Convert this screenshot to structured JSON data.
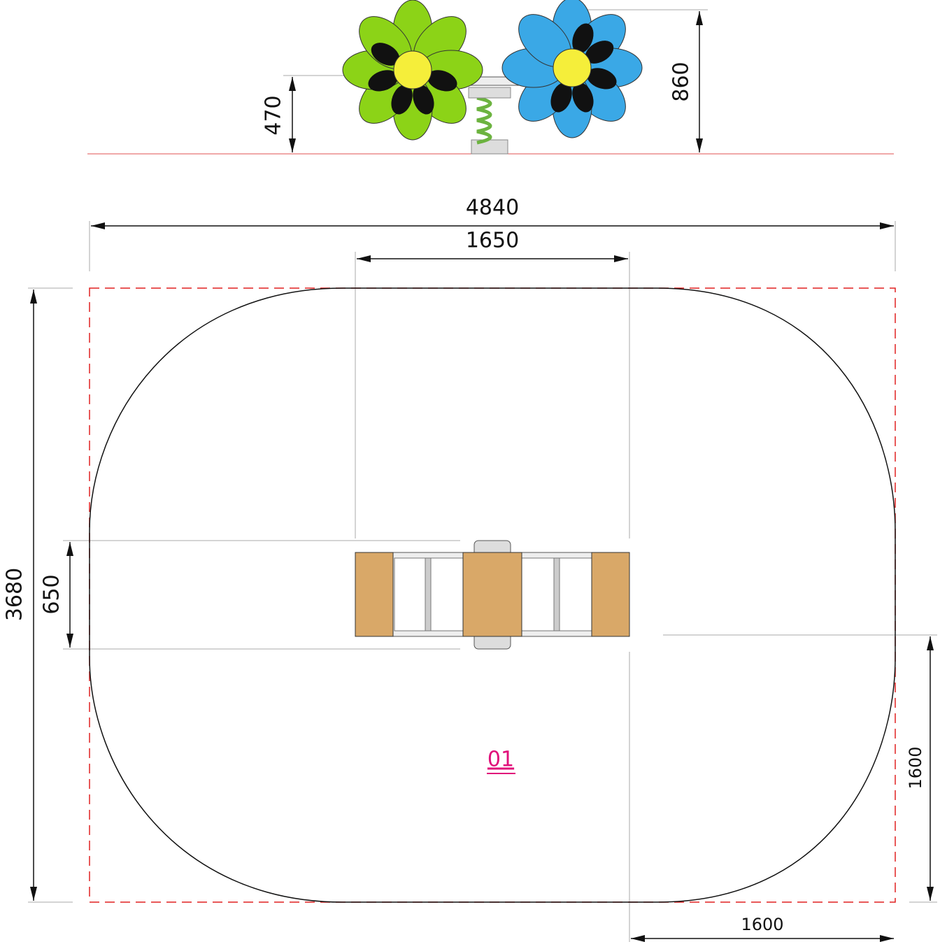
{
  "elevation": {
    "seat_height": "470",
    "total_height": "860"
  },
  "plan": {
    "total_width": "4840",
    "equipment_length": "1650",
    "total_depth": "3680",
    "equipment_width": "650",
    "corner_radius_vertical": "1600",
    "corner_radius_horizontal": "1600",
    "label": "01"
  }
}
